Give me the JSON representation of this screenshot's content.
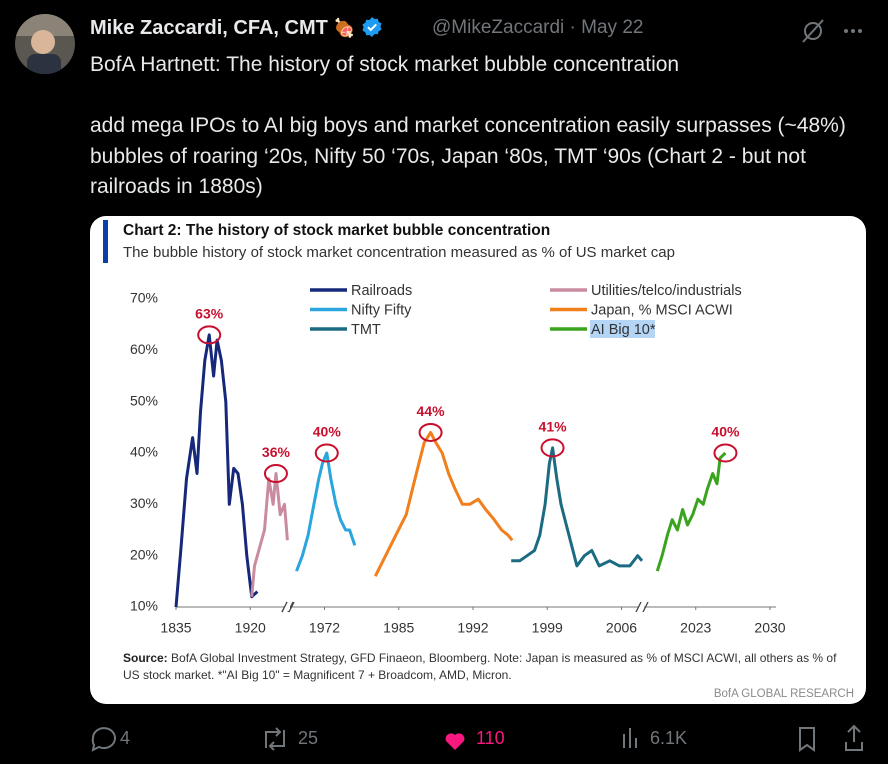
{
  "tweet": {
    "author_name": "Mike Zaccardi, CFA, CMT",
    "author_emoji": "🍖",
    "handle": "@MikeZaccardi",
    "separator": "·",
    "date": "May 22",
    "text": [
      "BofA Hartnett: The history of stock market bubble concentration",
      "add mega IPOs to AI big boys and market concentration easily surpasses (~48%) bubbles of roaring ‘20s, Nifty 50 ‘70s, Japan ‘80s, TMT ‘90s (Chart 2 - but not railroads in 1880s)"
    ],
    "stats": {
      "replies": 4,
      "retweets": 25,
      "likes": 110,
      "views": "6.1K"
    }
  },
  "chart_data": {
    "type": "line",
    "title": "Chart 2: The history of stock market bubble concentration",
    "subtitle": "The bubble history of stock market concentration measured as % of US market cap",
    "source_label": "Source:",
    "source": "BofA Global Investment Strategy, GFD Finaeon, Bloomberg. Note: Japan is measured as % of MSCI ACWI, all others as % of US stock market. *\"AI Big 10\" = Magnificent 7 + Broadcom, AMD, Micron.",
    "footer": "BofA GLOBAL RESEARCH",
    "xlim": [
      1835,
      2030
    ],
    "xticks": [
      1835,
      1920,
      1972,
      1985,
      1992,
      1999,
      2006,
      2023,
      2030
    ],
    "ylim": [
      10,
      70
    ],
    "yticks": [
      {
        "value": 10,
        "label": "10%"
      },
      {
        "value": 20,
        "label": "20%"
      },
      {
        "value": 30,
        "label": "30%"
      },
      {
        "value": 40,
        "label": "40%"
      },
      {
        "value": 50,
        "label": "50%"
      },
      {
        "value": 60,
        "label": "60%"
      },
      {
        "value": 70,
        "label": "70%"
      }
    ],
    "grid": false,
    "series": [
      {
        "name": "Railroads",
        "color": "#16287a",
        "peak_label": "63%",
        "x": [
          1835,
          1841,
          1847,
          1854,
          1859,
          1863,
          1868,
          1873,
          1878,
          1882,
          1887,
          1892,
          1896,
          1901,
          1906,
          1911,
          1916,
          1921,
          1925
        ],
        "values": [
          10,
          22,
          35,
          43,
          36,
          48,
          58,
          63,
          55,
          62,
          58,
          50,
          30,
          37,
          36,
          30,
          20,
          12,
          13
        ]
      },
      {
        "name": "Utilities/telco/industrials",
        "color": "#c98ba0",
        "peak_label": "36%",
        "x": [
          1921,
          1923,
          1927,
          1930,
          1933,
          1936,
          1938,
          1941,
          1944,
          1946
        ],
        "values": [
          12,
          18,
          22,
          25,
          35,
          30,
          36,
          28,
          30,
          23
        ]
      },
      {
        "name": "Nifty Fifty",
        "color": "#2aa5dd",
        "peak_label": "40%",
        "x": [
          1952.4,
          1956.5,
          1960.5,
          1964.6,
          1968,
          1970.6,
          1972.4,
          1973.1,
          1974,
          1974.8,
          1975.7,
          1976.4,
          1977.3
        ],
        "values": [
          17,
          20,
          24,
          30,
          35,
          38,
          40,
          35,
          30,
          27,
          25,
          25,
          22
        ]
      },
      {
        "name": "Japan, % MSCI ACWI",
        "color": "#f07f1c",
        "peak_label": "44%",
        "x": [
          1980.9,
          1982.7,
          1984.5,
          1985.7,
          1986.3,
          1986.9,
          1987.4,
          1988,
          1988.5,
          1989.1,
          1989.7,
          1990.3,
          1991,
          1991.7,
          1992.5,
          1993.2,
          1994,
          1994.7,
          1995.3,
          1995.7
        ],
        "values": [
          16,
          20,
          24,
          28,
          33,
          38,
          42,
          44,
          42,
          40,
          36,
          33,
          30,
          30,
          31,
          29,
          27,
          25,
          24,
          23
        ]
      },
      {
        "name": "TMT",
        "color": "#1b6b82",
        "peak_label": "41%",
        "x": [
          1995.6,
          1996.4,
          1997.1,
          1997.8,
          1998.3,
          1998.8,
          1999.2,
          1999.5,
          1999.9,
          2000.3,
          2000.8,
          2001.3,
          2001.8,
          2002.5,
          2003.2,
          2003.9,
          2004.9,
          2005.8,
          2007.9,
          2009.7,
          2010.7
        ],
        "values": [
          19,
          19,
          20,
          21,
          24,
          30,
          38,
          41,
          35,
          30,
          26,
          22,
          18,
          20,
          21,
          18,
          19,
          18,
          18,
          20,
          19
        ]
      },
      {
        "name": "AI Big 10*",
        "color": "#3aa41e",
        "peak_label": "40%",
        "highlighted": true,
        "x": [
          2014.2,
          2015.3,
          2016.5,
          2017.6,
          2018.8,
          2020,
          2021.1,
          2022.3,
          2023.2,
          2023.7,
          2024.1,
          2024.6,
          2025,
          2025.3,
          2025.8
        ],
        "values": [
          17,
          20,
          24,
          27,
          25,
          29,
          26,
          28,
          31,
          30,
          33,
          36,
          34,
          39,
          40
        ]
      }
    ]
  }
}
